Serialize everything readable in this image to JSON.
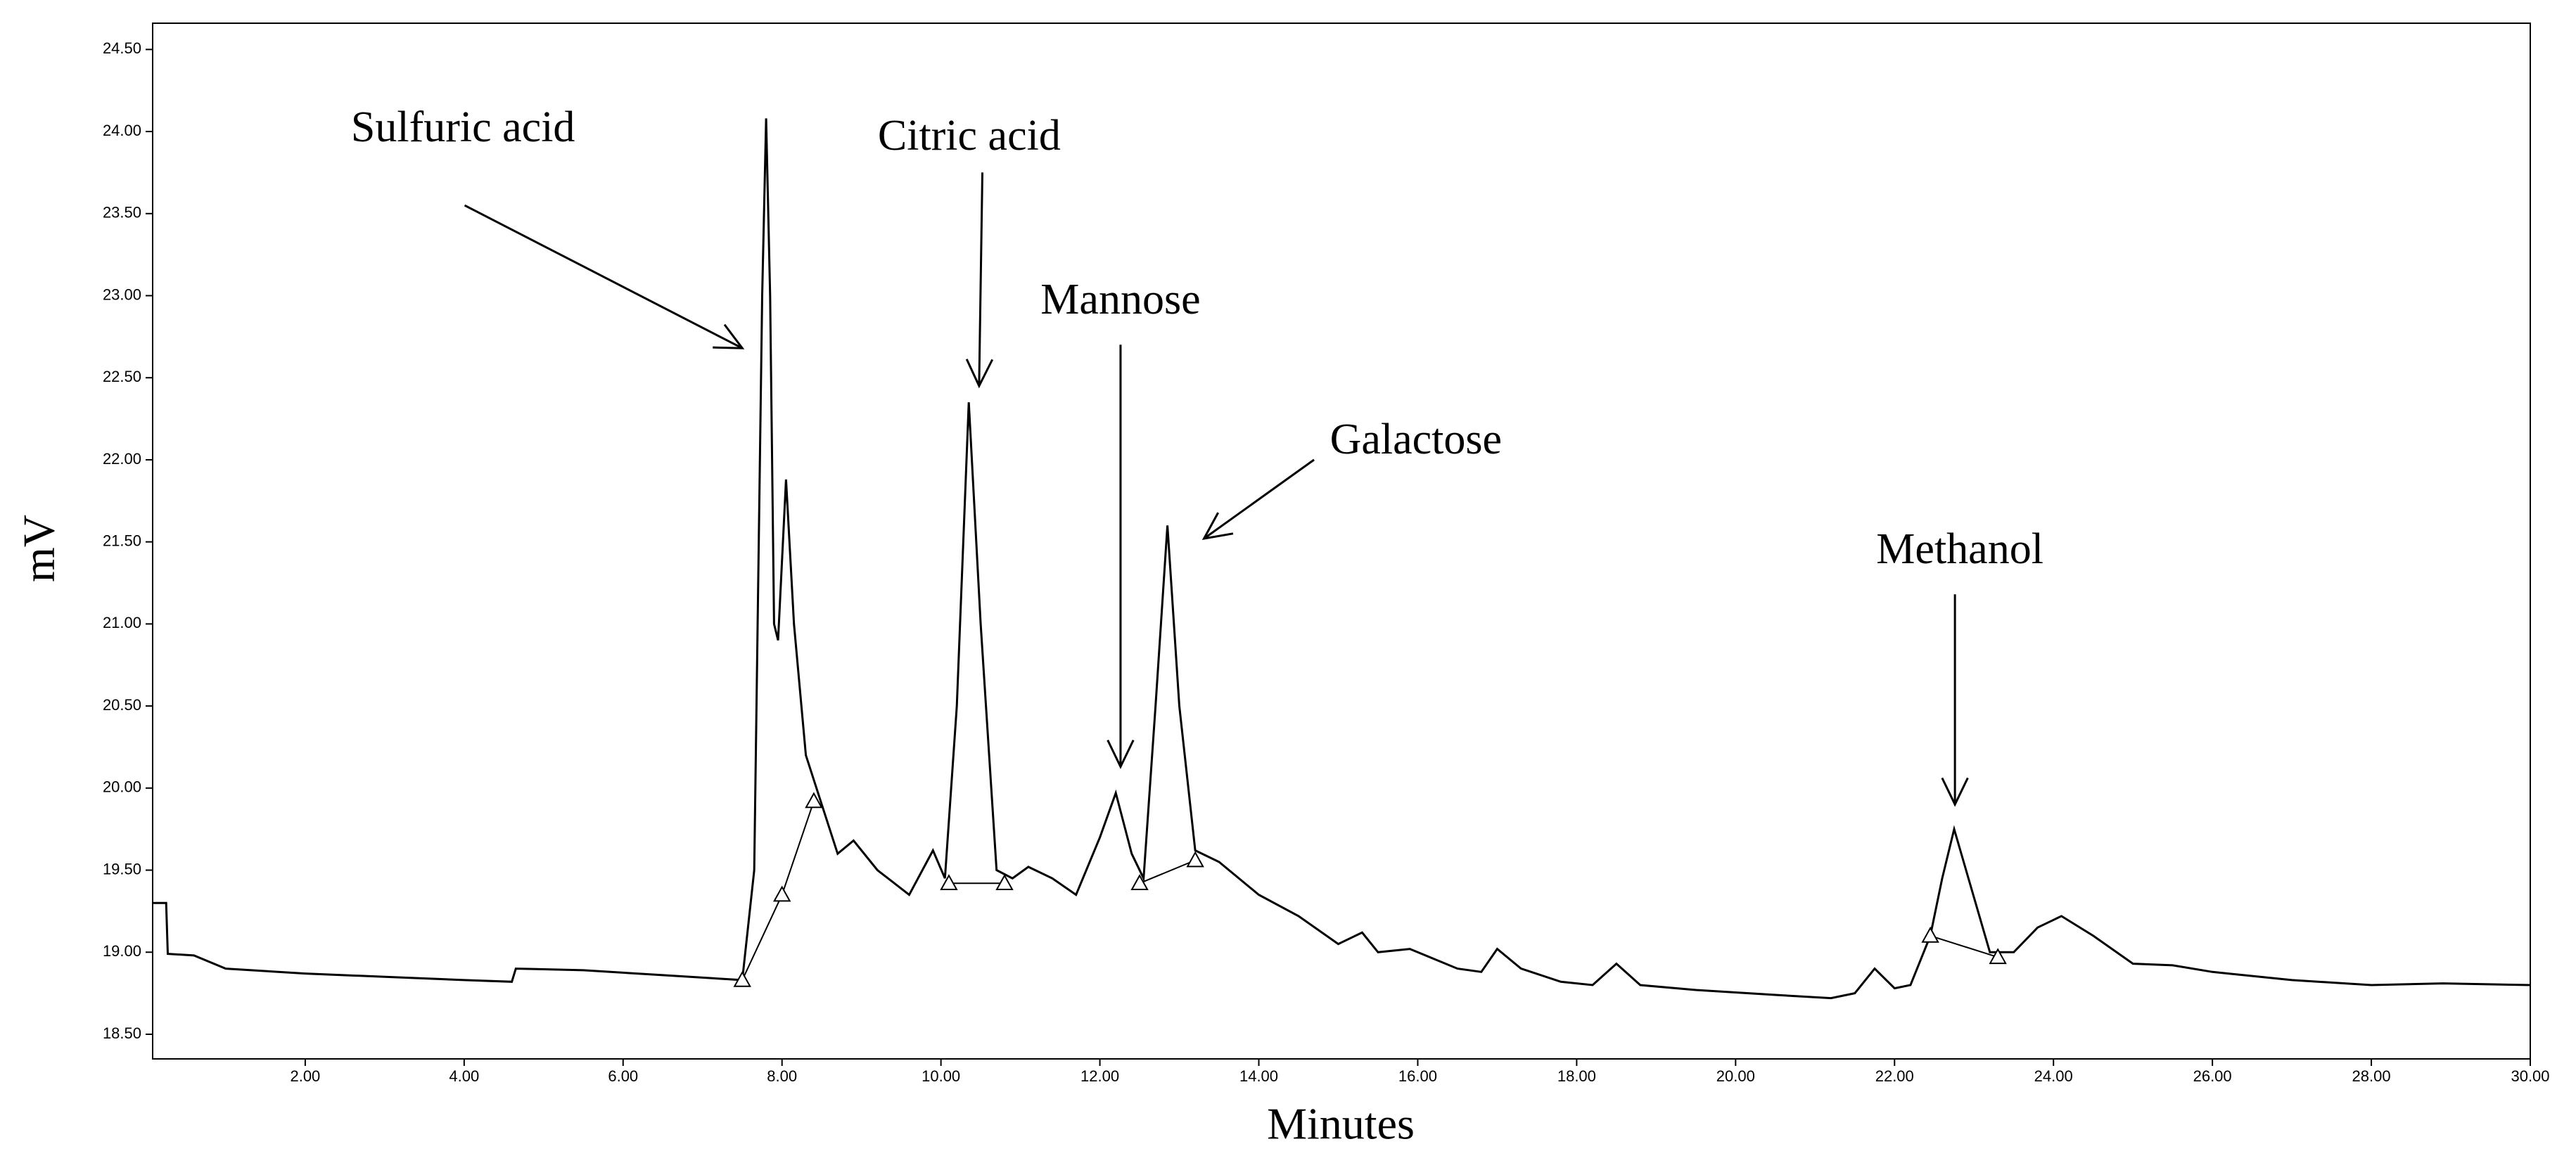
{
  "chart_data": {
    "type": "line",
    "xlabel": "Minutes",
    "ylabel": "mV",
    "xlim": [
      0.08,
      30
    ],
    "ylim": [
      18.35,
      24.66
    ],
    "xticks": [
      {
        "value": 2,
        "label": "2.00"
      },
      {
        "value": 4,
        "label": "4.00"
      },
      {
        "value": 6,
        "label": "6.00"
      },
      {
        "value": 8,
        "label": "8.00"
      },
      {
        "value": 10,
        "label": "10.00"
      },
      {
        "value": 12,
        "label": "12.00"
      },
      {
        "value": 14,
        "label": "14.00"
      },
      {
        "value": 16,
        "label": "16.00"
      },
      {
        "value": 18,
        "label": "18.00"
      },
      {
        "value": 20,
        "label": "20.00"
      },
      {
        "value": 22,
        "label": "22.00"
      },
      {
        "value": 24,
        "label": "24.00"
      },
      {
        "value": 26,
        "label": "26.00"
      },
      {
        "value": 28,
        "label": "28.00"
      },
      {
        "value": 30,
        "label": "30.00"
      }
    ],
    "yticks": [
      {
        "value": 18.5,
        "label": "18.50"
      },
      {
        "value": 19,
        "label": "19.00"
      },
      {
        "value": 19.5,
        "label": "19.50"
      },
      {
        "value": 20,
        "label": "20.00"
      },
      {
        "value": 20.5,
        "label": "20.50"
      },
      {
        "value": 21,
        "label": "21.00"
      },
      {
        "value": 21.5,
        "label": "21.50"
      },
      {
        "value": 22,
        "label": "22.00"
      },
      {
        "value": 22.5,
        "label": "22.50"
      },
      {
        "value": 23,
        "label": "23.00"
      },
      {
        "value": 23.5,
        "label": "23.50"
      },
      {
        "value": 24,
        "label": "24.00"
      },
      {
        "value": 24.5,
        "label": "24.50"
      }
    ],
    "x": [
      0.08,
      0.25,
      0.27,
      0.6,
      1.0,
      2,
      3,
      4,
      4.6,
      4.65,
      5.5,
      6.5,
      7.5,
      7.65,
      7.75,
      7.8,
      7.85,
      7.9,
      7.95,
      8.05,
      8.15,
      8.3,
      8.5,
      8.7,
      8.9,
      9.2,
      9.6,
      9.9,
      10.05,
      10.2,
      10.35,
      10.5,
      10.7,
      10.9,
      11.1,
      11.4,
      11.7,
      12.0,
      12.2,
      12.4,
      12.55,
      12.7,
      12.85,
      13.0,
      13.2,
      13.5,
      14.0,
      14.5,
      15.0,
      15.3,
      15.5,
      15.9,
      16.5,
      16.8,
      17.0,
      17.3,
      17.8,
      18.2,
      18.5,
      18.8,
      19.5,
      20.5,
      21.2,
      21.5,
      21.75,
      22.0,
      22.2,
      22.45,
      22.6,
      22.75,
      22.9,
      23.2,
      23.5,
      23.8,
      24.1,
      24.5,
      25,
      25.5,
      26,
      27,
      28,
      28.9,
      30
    ],
    "series": [
      {
        "color": "#000000",
        "values": [
          19.3,
          19.3,
          18.99,
          18.98,
          18.9,
          18.87,
          18.85,
          18.83,
          18.82,
          18.9,
          18.89,
          18.86,
          18.83,
          19.5,
          23.0,
          24.08,
          23.0,
          21.0,
          20.9,
          21.88,
          21.0,
          20.2,
          19.9,
          19.6,
          19.68,
          19.5,
          19.35,
          19.62,
          19.45,
          20.5,
          22.35,
          21.0,
          19.5,
          19.45,
          19.52,
          19.45,
          19.35,
          19.7,
          19.97,
          19.6,
          19.45,
          20.5,
          21.6,
          20.5,
          19.62,
          19.55,
          19.35,
          19.22,
          19.05,
          19.12,
          19.0,
          19.02,
          18.9,
          18.88,
          19.02,
          18.9,
          18.82,
          18.8,
          18.93,
          18.8,
          18.77,
          18.74,
          18.72,
          18.75,
          18.9,
          18.78,
          18.8,
          19.1,
          19.45,
          19.75,
          19.5,
          19.0,
          19.0,
          19.15,
          19.22,
          19.1,
          18.93,
          18.92,
          18.88,
          18.83,
          18.8,
          18.81,
          18.8
        ]
      }
    ],
    "baselines": [
      {
        "x": [
          7.5,
          8.0,
          8.4
        ],
        "y": [
          18.83,
          19.35,
          19.92
        ]
      },
      {
        "x": [
          10.1,
          10.8
        ],
        "y": [
          19.42,
          19.42
        ]
      },
      {
        "x": [
          12.5,
          13.2
        ],
        "y": [
          19.42,
          19.56
        ]
      },
      {
        "x": [
          22.45,
          23.3
        ],
        "y": [
          19.1,
          18.97
        ]
      }
    ],
    "annotations": [
      {
        "text": "Sulfuric acid",
        "x": 7.5,
        "y": 22.68
      },
      {
        "text": "Citric acid",
        "x": 10.48,
        "y": 22.45
      },
      {
        "text": "Mannose",
        "x": 12.26,
        "y": 20.13
      },
      {
        "text": "Galactose",
        "x": 13.31,
        "y": 21.52
      },
      {
        "text": "Methanol",
        "x": 22.76,
        "y": 19.9
      }
    ]
  }
}
